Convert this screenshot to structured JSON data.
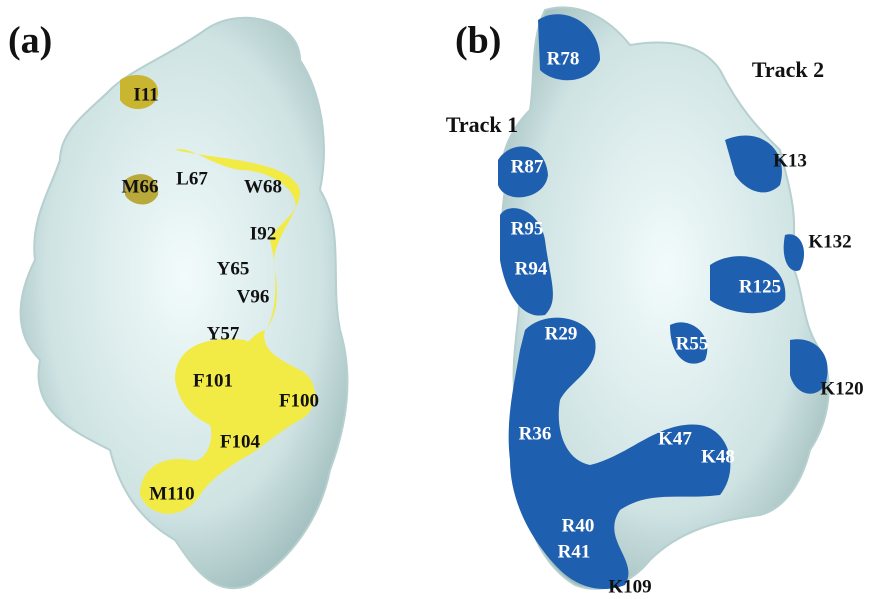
{
  "panels": [
    {
      "label": "(a)",
      "residues": [
        "I11",
        "M66",
        "L67",
        "W68",
        "I92",
        "Y65",
        "V96",
        "Y57",
        "F101",
        "F100",
        "F104",
        "M110"
      ]
    },
    {
      "label": "(b)",
      "tracks": [
        "Track 1",
        "Track 2"
      ],
      "residues": [
        "R78",
        "R87",
        "K13",
        "R95",
        "K132",
        "R94",
        "R125",
        "R29",
        "R55",
        "K120",
        "R36",
        "K47",
        "K48",
        "R40",
        "R41",
        "K109"
      ]
    }
  ]
}
